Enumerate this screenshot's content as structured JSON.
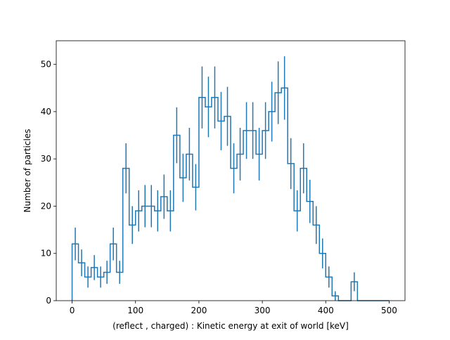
{
  "chart_data": {
    "type": "histogram",
    "xlabel": "(reflect , charged) : Kinetic energy at exit of world [keV]",
    "ylabel": "Number of particles",
    "xlim": [
      -25,
      525
    ],
    "ylim": [
      0,
      55
    ],
    "xticks": [
      0,
      100,
      200,
      300,
      400,
      500
    ],
    "yticks": [
      0,
      10,
      20,
      30,
      40,
      50
    ],
    "bin_width": 10,
    "bin_start": 0,
    "line_color": "#1f77b4",
    "counts": [
      12,
      8,
      5,
      7,
      5,
      6,
      12,
      6,
      28,
      16,
      19,
      20,
      20,
      19,
      22,
      19,
      35,
      26,
      31,
      24,
      43,
      41,
      43,
      38,
      39,
      28,
      31,
      36,
      36,
      31,
      36,
      40,
      44,
      45,
      29,
      19,
      28,
      21,
      16,
      10,
      5,
      1,
      0,
      0,
      4,
      0,
      0,
      0,
      0,
      0
    ]
  }
}
